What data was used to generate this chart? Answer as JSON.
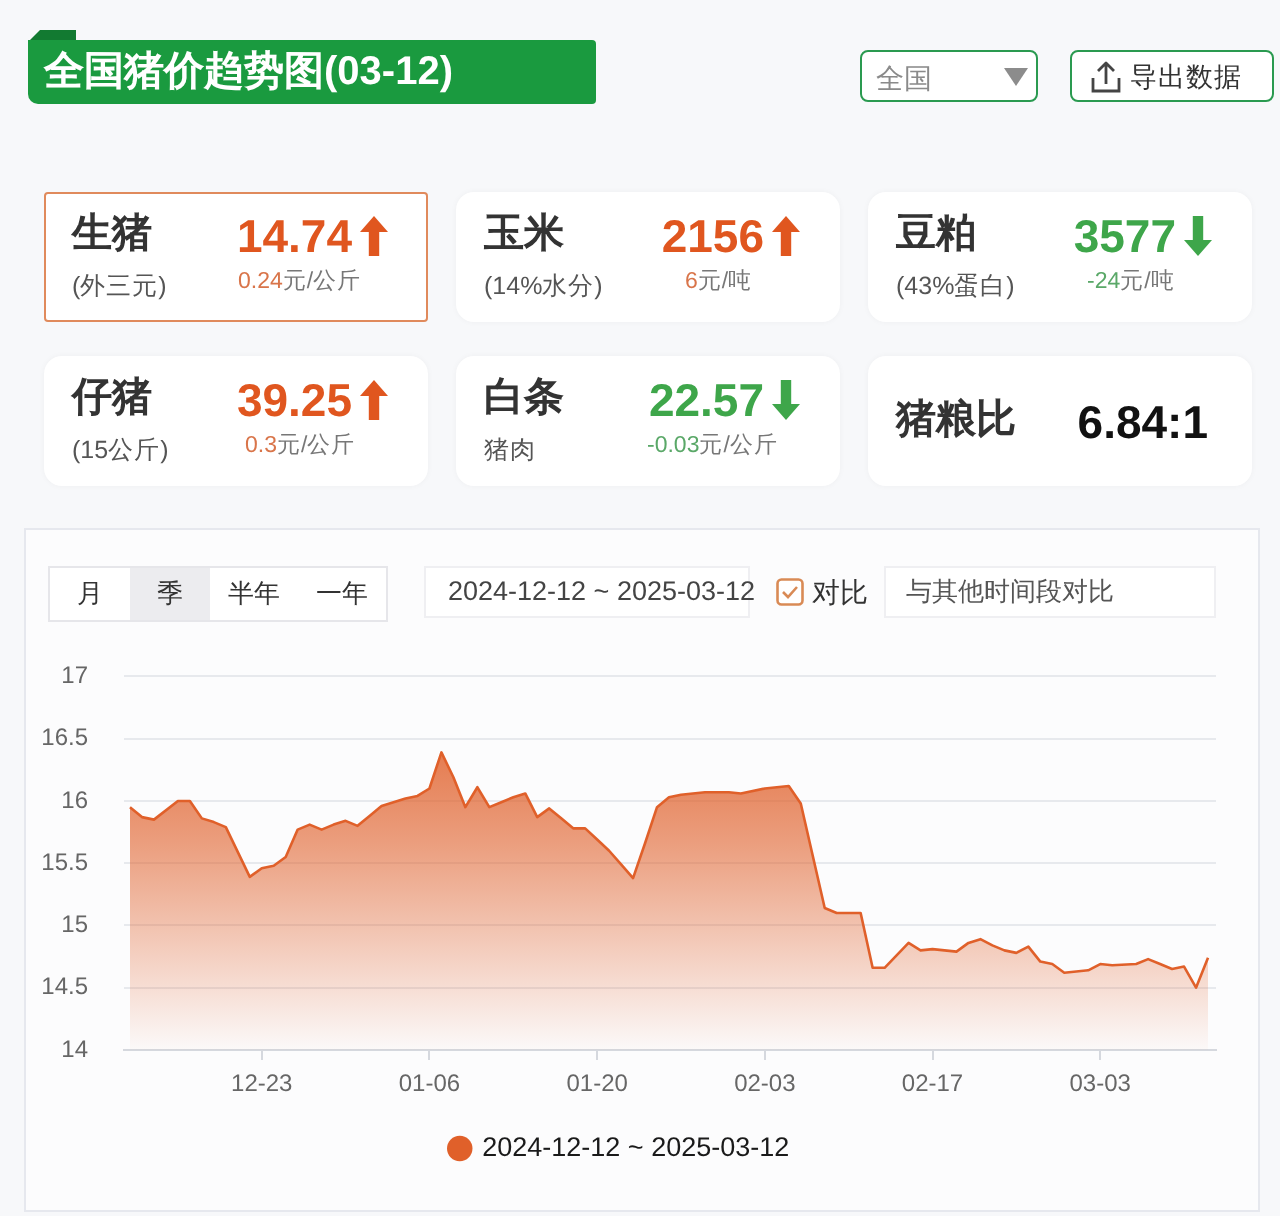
{
  "chart_data": [
    {
      "type": "other",
      "title": "全国猪价趋势图(03-12)",
      "categories": [
        "生猪",
        "玉米",
        "豆粕",
        "仔猪",
        "白条",
        "猪粮比"
      ],
      "series": [
        {
          "values": [
            14.74,
            2156,
            3577,
            39.25,
            22.57,
            6.84
          ],
          "value_labels": [
            "14.74",
            "2156",
            "3577",
            "39.25",
            "22.57",
            "6.84:1"
          ]
        },
        {
          "values": [
            0.24,
            6,
            -24,
            0.3,
            -0.03,
            null
          ],
          "value_labels": [
            "0.24元/公斤",
            "6元/吨",
            "-24元/吨",
            "0.3元/公斤",
            "-0.03元/公斤",
            null
          ]
        }
      ],
      "annotations": [
        "全国",
        "导出数据",
        "(外三元)",
        "(14%水分)",
        "(43%蛋白)",
        "(15公斤)",
        "猪肉"
      ]
    },
    {
      "type": "area",
      "x": [
        "2024-12-12",
        "2024-12-13",
        "2024-12-14",
        "2024-12-16",
        "2024-12-17",
        "2024-12-18",
        "2024-12-19",
        "2024-12-20",
        "2024-12-22",
        "2024-12-23",
        "2024-12-24",
        "2024-12-25",
        "2024-12-26",
        "2024-12-27",
        "2024-12-28",
        "2024-12-29",
        "2024-12-30",
        "2024-12-31",
        "2025-01-01",
        "2025-01-02",
        "2025-01-03",
        "2025-01-04",
        "2025-01-05",
        "2025-01-06",
        "2025-01-07",
        "2025-01-08",
        "2025-01-09",
        "2025-01-10",
        "2025-01-11",
        "2025-01-12",
        "2025-01-13",
        "2025-01-14",
        "2025-01-15",
        "2025-01-16",
        "2025-01-17",
        "2025-01-18",
        "2025-01-19",
        "2025-01-20",
        "2025-01-21",
        "2025-01-22",
        "2025-01-23",
        "2025-01-24",
        "2025-01-25",
        "2025-01-26",
        "2025-01-27",
        "2025-01-29",
        "2025-01-31",
        "2025-02-01",
        "2025-02-03",
        "2025-02-05",
        "2025-02-06",
        "2025-02-08",
        "2025-02-09",
        "2025-02-11",
        "2025-02-12",
        "2025-02-13",
        "2025-02-14",
        "2025-02-15",
        "2025-02-16",
        "2025-02-17",
        "2025-02-19",
        "2025-02-20",
        "2025-02-21",
        "2025-02-22",
        "2025-02-23",
        "2025-02-24",
        "2025-02-25",
        "2025-02-26",
        "2025-02-27",
        "2025-02-28",
        "2025-03-02",
        "2025-03-03",
        "2025-03-04",
        "2025-03-06",
        "2025-03-07",
        "2025-03-08",
        "2025-03-09",
        "2025-03-10",
        "2025-03-11",
        "2025-03-12"
      ],
      "series": [
        {
          "name": "2024-12-12 ~ 2025-03-12",
          "color": "#e0602a",
          "values": [
            15.95,
            15.87,
            15.85,
            16.0,
            16.0,
            15.86,
            15.83,
            15.79,
            15.39,
            15.46,
            15.48,
            15.55,
            15.77,
            15.81,
            15.77,
            15.81,
            15.84,
            15.8,
            15.88,
            15.96,
            15.99,
            16.02,
            16.04,
            16.1,
            16.39,
            16.19,
            15.95,
            16.11,
            15.95,
            15.99,
            16.03,
            16.06,
            15.87,
            15.94,
            15.86,
            15.78,
            15.78,
            15.69,
            15.6,
            15.49,
            15.38,
            15.66,
            15.95,
            16.03,
            16.05,
            16.07,
            16.07,
            16.06,
            16.1,
            16.12,
            15.98,
            15.14,
            15.1,
            15.1,
            14.66,
            14.66,
            14.76,
            14.86,
            14.8,
            14.81,
            14.79,
            14.86,
            14.89,
            14.84,
            14.8,
            14.78,
            14.83,
            14.71,
            14.69,
            14.62,
            14.64,
            14.69,
            14.68,
            14.69,
            14.73,
            14.69,
            14.65,
            14.67,
            14.5,
            14.74
          ]
        }
      ],
      "xlim": [
        "2024-12-11T12:00",
        "2025-03-12T16:00"
      ],
      "xticks": [
        {
          "value": "2024-12-23",
          "label": "12-23"
        },
        {
          "value": "2025-01-06",
          "label": "01-06"
        },
        {
          "value": "2025-01-20",
          "label": "01-20"
        },
        {
          "value": "2025-02-03",
          "label": "02-03"
        },
        {
          "value": "2025-02-17",
          "label": "02-17"
        },
        {
          "value": "2025-03-03",
          "label": "03-03"
        }
      ],
      "ylim": [
        14,
        17
      ],
      "yticks": [
        14,
        14.5,
        15,
        15.5,
        16,
        16.5,
        17
      ],
      "grid": "y",
      "legend": "bottom",
      "marker": "none",
      "annotations": [
        "月",
        "季",
        "半年",
        "一年",
        "2024-12-12 ~ 2025-03-12",
        "对比",
        "与其他时间段对比"
      ]
    }
  ]
}
